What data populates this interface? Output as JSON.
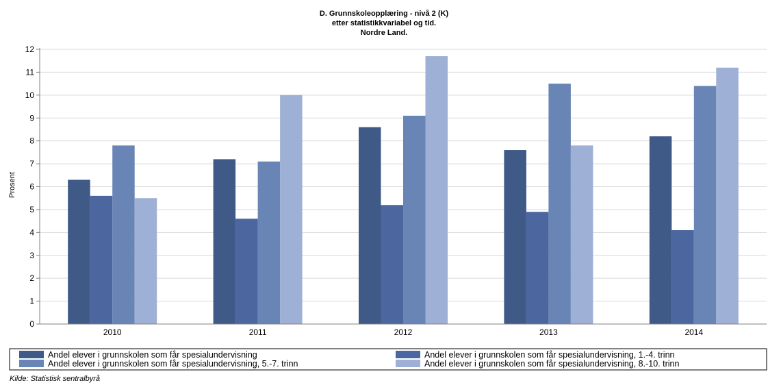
{
  "chart_data": {
    "type": "bar",
    "title_lines": [
      "D. Grunnskoleopplæring - nivå 2 (K)",
      "etter statistikkvariabel og tid.",
      "Nordre Land."
    ],
    "xlabel": "",
    "ylabel": "Prosent",
    "ylim": [
      0,
      12
    ],
    "yticks": [
      "0",
      "1",
      "2",
      "3",
      "4",
      "5",
      "6",
      "7",
      "8",
      "9",
      "10",
      "11",
      "12"
    ],
    "grid": true,
    "legend_position": "bottom",
    "categories": [
      "2010",
      "2011",
      "2012",
      "2013",
      "2014"
    ],
    "series": [
      {
        "name": "Andel elever i grunnskolen som får spesialundervisning",
        "color": "#3f5a87",
        "values": [
          6.3,
          7.2,
          8.6,
          7.6,
          8.2
        ]
      },
      {
        "name": "Andel elever i grunnskolen som får spesialundervisning, 1.-4. trinn",
        "color": "#4c66a0",
        "values": [
          5.6,
          4.6,
          5.2,
          4.9,
          4.1
        ]
      },
      {
        "name": "Andel elever i grunnskolen som får spesialundervisning, 5.-7. trinn",
        "color": "#6985b5",
        "values": [
          7.8,
          7.1,
          9.1,
          10.5,
          10.4
        ]
      },
      {
        "name": "Andel elever i grunnskolen som får spesialundervisning, 8.-10. trinn",
        "color": "#9eb0d6",
        "values": [
          5.5,
          10.0,
          11.7,
          7.8,
          11.2
        ]
      }
    ]
  },
  "source": "Kilde: Statistisk sentralbyrå"
}
